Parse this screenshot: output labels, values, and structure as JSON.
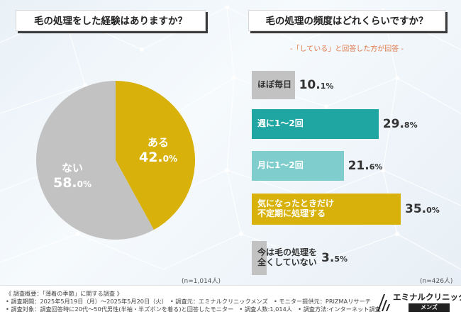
{
  "questions": {
    "q1": "毛の処理をした経験はありますか？",
    "q2": "毛の処理の頻度はどれくらいですか？"
  },
  "q2_subnote": "-「している」と回答した方が回答 -",
  "chart_data": [
    {
      "type": "pie",
      "title": "毛の処理をした経験はありますか？",
      "slices": [
        {
          "label": "ある",
          "value": 42.0,
          "display": "42.0%",
          "color": "#d8b20a"
        },
        {
          "label": "ない",
          "value": 58.0,
          "display": "58.0%",
          "color": "#c2c2c2"
        }
      ],
      "n": "(n=1,014人)"
    },
    {
      "type": "bar",
      "orientation": "horizontal",
      "title": "毛の処理の頻度はどれくらいですか？",
      "xlim": [
        0,
        35
      ],
      "bars": [
        {
          "label": "ほぼ毎日",
          "value": 10.1,
          "display_int": "10.",
          "display_dec": "1%",
          "color": "#c2c2c2"
        },
        {
          "label": "週に1〜2回",
          "value": 29.8,
          "display_int": "29.",
          "display_dec": "8%",
          "color": "#1fa5a2"
        },
        {
          "label": "月に1〜2回",
          "value": 21.6,
          "display_int": "21.",
          "display_dec": "6%",
          "color": "#7fcdcc"
        },
        {
          "label": "気になったときだけ\n不定期に処理する",
          "value": 35.0,
          "display_int": "35.",
          "display_dec": "0%",
          "color": "#d8b20a"
        },
        {
          "label": "今は毛の処理を\n全くしていない",
          "value": 3.5,
          "display_int": "3.",
          "display_dec": "5%",
          "color": "#c2c2c2"
        }
      ],
      "n": "(n=426人)"
    }
  ],
  "pie_labels": {
    "aru_name": "ある",
    "aru_int": "42.",
    "aru_dec": "0%",
    "nai_name": "ない",
    "nai_int": "58.",
    "nai_dec": "0%"
  },
  "footer": {
    "lines": [
      "《 調査概要：「薄着の季節」に関する調査 》",
      "• 調査期間：2025年5月19日（月）～2025年5月20日（火）　• 調査元：エミナルクリニックメンズ　• モニター提供元：PRIZMAリサーチ",
      "• 調査対象：調査回答時に20代～50代男性(半袖・半ズボンを着る)と回答したモニター　• 調査人数:1,014人　• 調査方法:インターネット調査"
    ],
    "logo_name": "エミナルクリニック",
    "logo_sub": "メンズ"
  },
  "colors": {
    "gold": "#d8b20a",
    "gray": "#c2c2c2",
    "teal": "#1fa5a2",
    "light_teal": "#7fcdcc"
  }
}
